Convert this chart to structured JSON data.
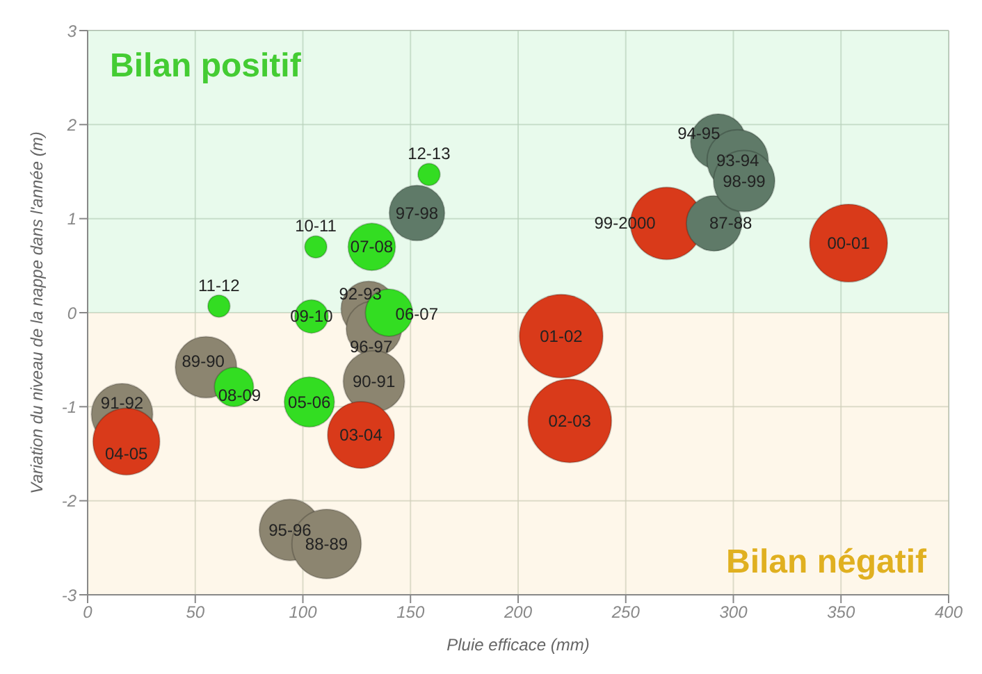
{
  "chart_data": {
    "type": "bubble",
    "xlabel": "Pluie efficace (mm)",
    "ylabel": "Variation du niveau de la nappe dans l'année (m)",
    "x": [
      158.6,
      153,
      106,
      132,
      61,
      104,
      130.6,
      133,
      140,
      55,
      68,
      103,
      133,
      127,
      16,
      18,
      94,
      111,
      220,
      224,
      353.5,
      269,
      291,
      293,
      302,
      305
    ],
    "values": [
      1.47,
      1.06,
      0.7,
      0.7,
      0.07,
      -0.04,
      0.04,
      -0.17,
      0,
      -0.58,
      -0.79,
      -0.95,
      -0.73,
      -1.3,
      -1.08,
      -1.37,
      -2.31,
      -2.46,
      -0.25,
      -1.15,
      0.74,
      0.95,
      0.95,
      1.82,
      1.62,
      1.4
    ],
    "sizes": [
      0.07,
      0.44,
      0.07,
      0.32,
      0.07,
      0.16,
      0.44,
      0.44,
      0.32,
      0.54,
      0.22,
      0.36,
      0.54,
      0.64,
      0.54,
      0.64,
      0.54,
      0.69,
      1,
      1,
      0.87,
      0.75,
      0.44,
      0.44,
      0.54,
      0.54
    ],
    "colors": [
      "#33dd22",
      "#5f7a68",
      "#33dd22",
      "#33dd22",
      "#33dd22",
      "#33dd22",
      "#8c8570",
      "#8c8570",
      "#33dd22",
      "#8c8570",
      "#33dd22",
      "#33dd22",
      "#8c8570",
      "#d93a1a",
      "#8c8570",
      "#d93a1a",
      "#8c8570",
      "#8c8570",
      "#d93a1a",
      "#d93a1a",
      "#d93a1a",
      "#d93a1a",
      "#5f7a68",
      "#5f7a68",
      "#5f7a68",
      "#5f7a68"
    ],
    "value_labels": [
      "12-13",
      "97-98",
      "10-11",
      "07-08",
      "11-12",
      "09-10",
      "92-93",
      "96-97",
      "06-07",
      "89-90",
      "08-09",
      "05-06",
      "90-91",
      "03-04",
      "91-92",
      "04-05",
      "95-96",
      "88-89",
      "01-02",
      "02-03",
      "00-01",
      "99-2000",
      "87-88",
      "94-95",
      "93-94",
      "98-99"
    ],
    "xlim": [
      0,
      400
    ],
    "xticks": [
      0,
      50,
      100,
      150,
      200,
      250,
      300,
      350,
      400
    ],
    "ylim": [
      -3,
      3
    ],
    "yticks": [
      -3,
      -2,
      -1,
      0,
      1,
      2,
      3
    ],
    "bands": [
      {
        "axis": "y",
        "from": 0,
        "to": 3,
        "label": "Bilan positif",
        "color": "#d9f7df"
      },
      {
        "axis": "y",
        "from": -3,
        "to": 0,
        "label": "Bilan négatif",
        "color": "#fdf1dc"
      }
    ],
    "grid": true
  }
}
